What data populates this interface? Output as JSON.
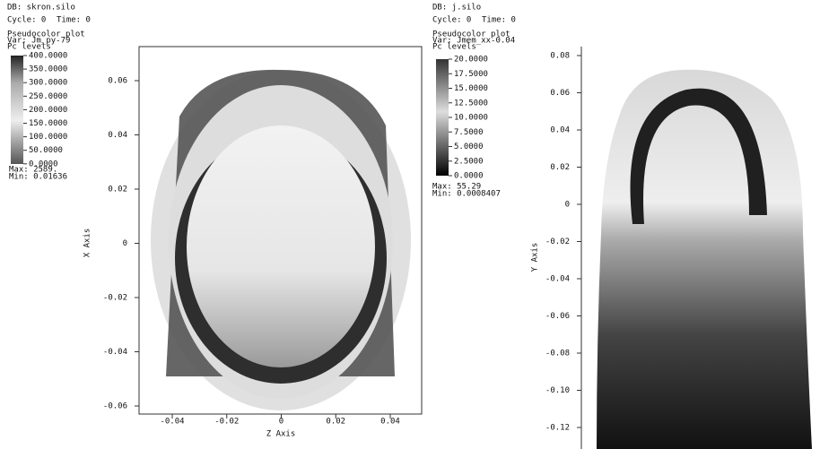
{
  "panels": [
    {
      "db": "DB: skron.silo",
      "cycle": "Cycle: 0",
      "time": "Time: 0",
      "plot": "Pseudocolor plot",
      "var": "Var: Jm_py-79",
      "levels": "Pc levels",
      "legend": [
        "400.0000",
        "350.0000",
        "300.0000",
        "250.0000",
        "200.0000",
        "150.0000",
        "100.0000",
        "50.0000",
        "0.0000"
      ],
      "max": "Max:  2589.",
      "min": "Min:  0.01636",
      "y_axis_title": "X Axis",
      "x_axis_title": "Z Axis",
      "yticks": [
        "0.06",
        "0.04",
        "0.02",
        "0",
        "-0.02",
        "-0.04",
        "-0.06"
      ],
      "xticks": [
        "-0.04",
        "-0.02",
        "0",
        "0.02",
        "0.04"
      ]
    },
    {
      "db": "DB: j.silo",
      "cycle": "Cycle: 0",
      "time": "Time: 0",
      "plot": "Pseudocolor plot",
      "var": "Var: Jmem_xx-0.04",
      "levels": "Pc levels",
      "legend": [
        "20.0000",
        "17.5000",
        "15.0000",
        "12.5000",
        "10.0000",
        "7.5000",
        "5.0000",
        "2.5000",
        "0.0000"
      ],
      "max": "Max:  55.29",
      "min": "Min:  0.0008407",
      "y_axis_title": "Y Axis",
      "yticks": [
        "0.08",
        "0.06",
        "0.04",
        "0.02",
        "0",
        "-0.02",
        "-0.04",
        "-0.06",
        "-0.08",
        "-0.10",
        "-0.12"
      ]
    }
  ]
}
